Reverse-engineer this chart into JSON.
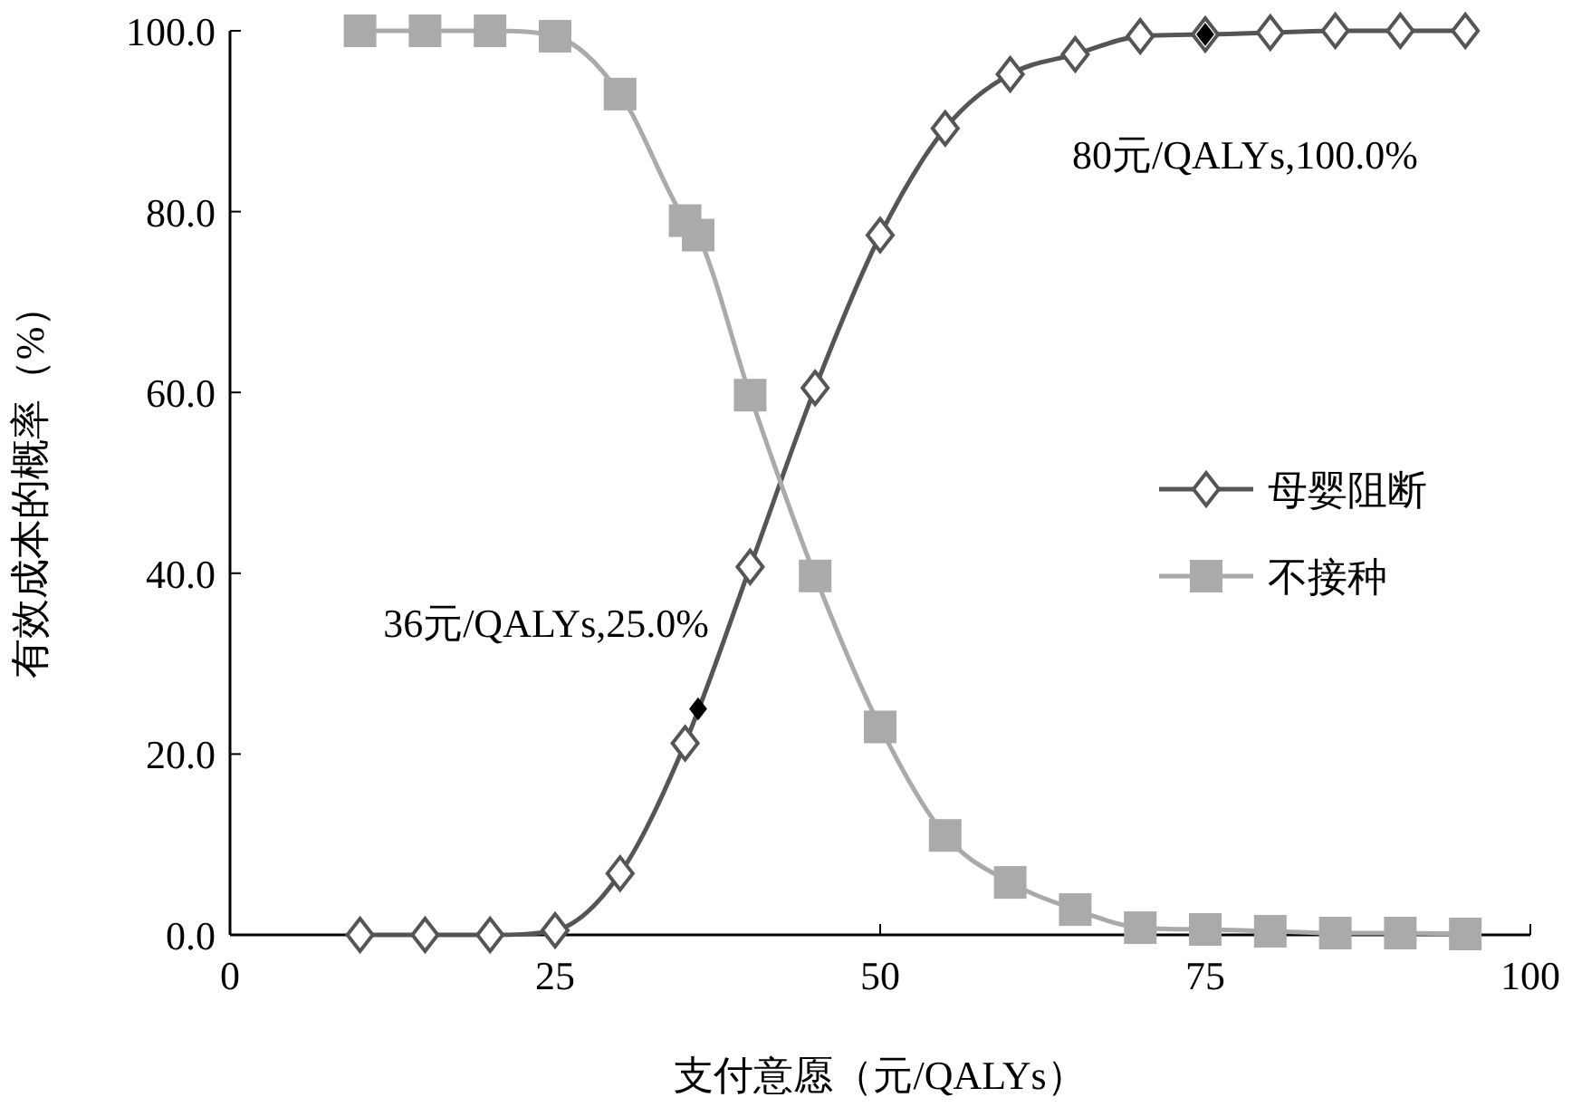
{
  "chart_data": {
    "type": "line",
    "xlabel": "支付意愿（元/QALYs）",
    "ylabel": "有效成本的概率（%）",
    "xlim": [
      0,
      100
    ],
    "xticks": [
      0,
      25,
      50,
      75,
      100
    ],
    "ylim": [
      0,
      100
    ],
    "yticks": [
      {
        "value": 0,
        "label": "0.0"
      },
      {
        "value": 20,
        "label": "20.0"
      },
      {
        "value": 40,
        "label": "40.0"
      },
      {
        "value": 60,
        "label": "60.0"
      },
      {
        "value": 80,
        "label": "80.0"
      },
      {
        "value": 100,
        "label": "100.0"
      }
    ],
    "legend": "right",
    "grid": false,
    "series": [
      {
        "name": "母婴阻断",
        "color": "#555555",
        "marker": "diamond",
        "x": [
          10,
          15,
          20,
          25,
          30,
          35,
          40,
          45,
          50,
          55,
          60,
          65,
          70,
          75,
          80,
          85,
          90,
          95
        ],
        "values": [
          0,
          0,
          0,
          0.5,
          6.8,
          21.2,
          40.7,
          60.5,
          77.4,
          89.2,
          95.2,
          97.4,
          99.4,
          99.6,
          99.8,
          100,
          100,
          100
        ]
      },
      {
        "name": "不接种",
        "color": "#aaaaaa",
        "marker": "square",
        "x": [
          10,
          15,
          20,
          25,
          30,
          35,
          36,
          40,
          45,
          50,
          55,
          60,
          65,
          70,
          75,
          80,
          85,
          90,
          95
        ],
        "values": [
          100,
          100,
          100,
          99.4,
          93,
          79,
          77.4,
          59.7,
          39.7,
          23,
          11,
          5.8,
          2.8,
          0.8,
          0.6,
          0.4,
          0.2,
          0.2,
          0.1
        ]
      },
      {
        "type": "scatter",
        "color": "#000000",
        "marker": "diamond",
        "x": [
          36,
          75
        ],
        "values": [
          25,
          99.6
        ]
      }
    ],
    "annotations": [
      {
        "text": "36元/QALYs,25.0%",
        "x": 36,
        "y": 25
      },
      {
        "text": "80元/QALYs,100.0%",
        "x": 75,
        "y": 99.6
      }
    ]
  }
}
